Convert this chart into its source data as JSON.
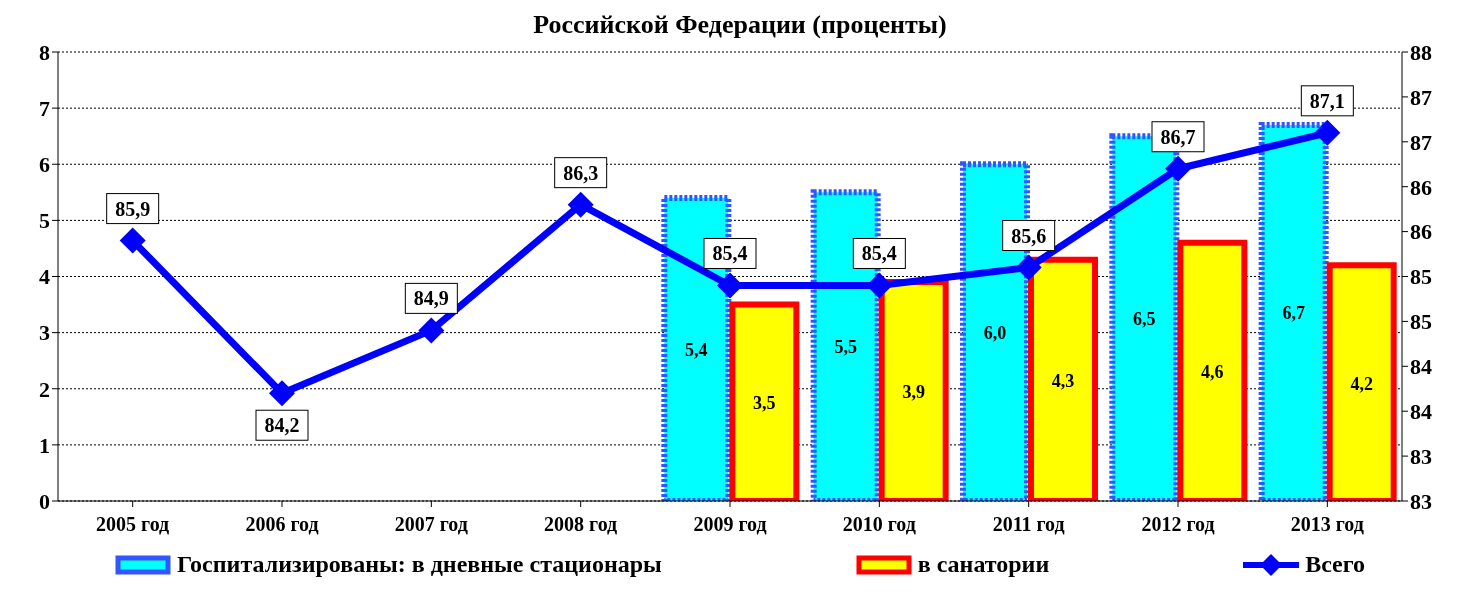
{
  "chart_data": {
    "type": "bar",
    "title": "Российской Федерации (проценты)",
    "categories": [
      "2005 год",
      "2006 год",
      "2007 год",
      "2008 год",
      "2009 год",
      "2010 год",
      "2011 год",
      "2012 год",
      "2013 год"
    ],
    "series": [
      {
        "name": "Госпитализированы: в дневные стационары",
        "color": "#00ffff",
        "values": [
          null,
          null,
          null,
          null,
          5.4,
          5.5,
          6.0,
          6.5,
          6.7
        ],
        "value_labels": [
          null,
          null,
          null,
          null,
          "5,4",
          "5,5",
          "6,0",
          "6,5",
          "6,7"
        ]
      },
      {
        "name": "в санатории",
        "color": "#ffff00",
        "values": [
          null,
          null,
          null,
          null,
          3.5,
          3.9,
          4.3,
          4.6,
          4.2
        ],
        "value_labels": [
          null,
          null,
          null,
          null,
          "3,5",
          "3,9",
          "4,3",
          "4,6",
          "4,2"
        ]
      },
      {
        "name": "Всего",
        "type": "line",
        "axis": "y2",
        "color": "#0000ff",
        "marker": "diamond",
        "values": [
          85.9,
          84.2,
          84.9,
          86.3,
          85.4,
          85.4,
          85.6,
          86.7,
          87.1
        ],
        "value_labels": [
          "85,9",
          "84,2",
          "84,9",
          "86,3",
          "85,4",
          "85,4",
          "85,6",
          "86,7",
          "87,1"
        ]
      }
    ],
    "ylim": [
      0,
      8
    ],
    "yticks": [
      0,
      1,
      2,
      3,
      4,
      5,
      6,
      7,
      8
    ],
    "y2lim": [
      83,
      88
    ],
    "y2ticks": [
      83,
      {
        "value": 83.5,
        "label": "83"
      },
      84,
      {
        "value": 84.5,
        "label": "84"
      },
      85,
      {
        "value": 85.5,
        "label": "85"
      },
      86,
      {
        "value": 86.5,
        "label": "86"
      },
      87,
      {
        "value": 87.5,
        "label": "87"
      },
      88
    ],
    "grid": "y",
    "legend": "bottom"
  }
}
